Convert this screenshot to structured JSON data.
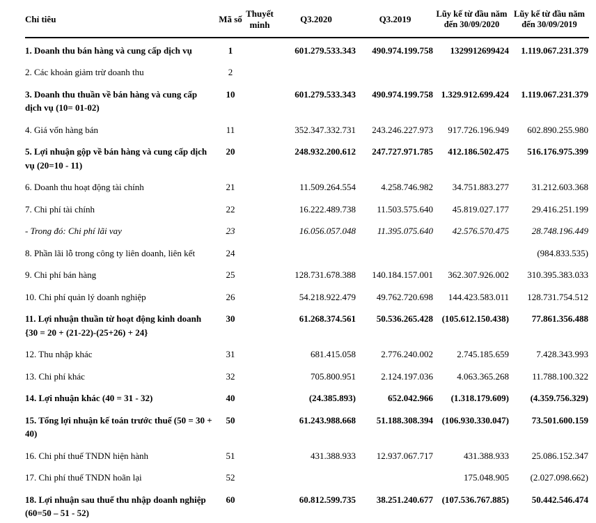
{
  "table": {
    "headers": {
      "label": "Chỉ tiêu",
      "code": "Mã số",
      "note": "Thuyết minh",
      "q3_2020": "Q3.2020",
      "q3_2019": "Q3.2019",
      "ytd_2020": "Lũy kế từ đầu năm đến 30/09/2020",
      "ytd_2019": "Lũy kế từ đầu năm đến 30/09/2019"
    },
    "rows": [
      {
        "label": "1. Doanh thu bán hàng và cung cấp dịch vụ",
        "code": "1",
        "note": "",
        "q3_2020": "601.279.533.343",
        "q3_2019": "490.974.199.758",
        "ytd_2020": "1329912699424",
        "ytd_2019": "1.119.067.231.379",
        "style": "bold"
      },
      {
        "label": "2. Các khoản giảm trừ doanh thu",
        "code": "2",
        "note": "",
        "q3_2020": "",
        "q3_2019": "",
        "ytd_2020": "",
        "ytd_2019": "",
        "style": "normal"
      },
      {
        "label": "3. Doanh thu thuần về bán hàng và cung cấp dịch vụ (10= 01-02)",
        "code": "10",
        "note": "",
        "q3_2020": "601.279.533.343",
        "q3_2019": "490.974.199.758",
        "ytd_2020": "1.329.912.699.424",
        "ytd_2019": "1.119.067.231.379",
        "style": "bold"
      },
      {
        "label": "4. Giá vốn hàng bán",
        "code": "11",
        "note": "",
        "q3_2020": "352.347.332.731",
        "q3_2019": "243.246.227.973",
        "ytd_2020": "917.726.196.949",
        "ytd_2019": "602.890.255.980",
        "style": "normal"
      },
      {
        "label": "5. Lợi nhuận gộp về bán hàng và cung cấp dịch vụ (20=10 - 11)",
        "code": "20",
        "note": "",
        "q3_2020": "248.932.200.612",
        "q3_2019": "247.727.971.785",
        "ytd_2020": "412.186.502.475",
        "ytd_2019": "516.176.975.399",
        "style": "bold"
      },
      {
        "label": "6. Doanh thu hoạt động tài chính",
        "code": "21",
        "note": "",
        "q3_2020": "11.509.264.554",
        "q3_2019": "4.258.746.982",
        "ytd_2020": "34.751.883.277",
        "ytd_2019": "31.212.603.368",
        "style": "normal"
      },
      {
        "label": "7. Chi phí tài chính",
        "code": "22",
        "note": "",
        "q3_2020": "16.222.489.738",
        "q3_2019": "11.503.575.640",
        "ytd_2020": "45.819.027.177",
        "ytd_2019": "29.416.251.199",
        "style": "normal"
      },
      {
        "label": "- Trong đó: Chi phí lãi vay",
        "code": "23",
        "note": "",
        "q3_2020": "16.056.057.048",
        "q3_2019": "11.395.075.640",
        "ytd_2020": "42.576.570.475",
        "ytd_2019": "28.748.196.449",
        "style": "italic"
      },
      {
        "label": "8. Phần lãi lỗ trong công ty liên doanh, liên kết",
        "code": "24",
        "note": "",
        "q3_2020": "",
        "q3_2019": "",
        "ytd_2020": "",
        "ytd_2019": "(984.833.535)",
        "style": "normal"
      },
      {
        "label": "9. Chi phí bán hàng",
        "code": "25",
        "note": "",
        "q3_2020": "128.731.678.388",
        "q3_2019": "140.184.157.001",
        "ytd_2020": "362.307.926.002",
        "ytd_2019": "310.395.383.033",
        "style": "normal"
      },
      {
        "label": "10. Chi phí quản lý doanh nghiệp",
        "code": "26",
        "note": "",
        "q3_2020": "54.218.922.479",
        "q3_2019": "49.762.720.698",
        "ytd_2020": "144.423.583.011",
        "ytd_2019": "128.731.754.512",
        "style": "normal"
      },
      {
        "label": "11. Lợi nhuận thuần từ hoạt động kinh doanh {30 = 20 + (21-22)-(25+26) + 24}",
        "code": "30",
        "note": "",
        "q3_2020": "61.268.374.561",
        "q3_2019": "50.536.265.428",
        "ytd_2020": "(105.612.150.438)",
        "ytd_2019": "77.861.356.488",
        "style": "bold"
      },
      {
        "label": "12. Thu nhập khác",
        "code": "31",
        "note": "",
        "q3_2020": "681.415.058",
        "q3_2019": "2.776.240.002",
        "ytd_2020": "2.745.185.659",
        "ytd_2019": "7.428.343.993",
        "style": "normal"
      },
      {
        "label": "13. Chi phí khác",
        "code": "32",
        "note": "",
        "q3_2020": "705.800.951",
        "q3_2019": "2.124.197.036",
        "ytd_2020": "4.063.365.268",
        "ytd_2019": "11.788.100.322",
        "style": "normal"
      },
      {
        "label": "14. Lợi nhuận khác (40 = 31 - 32)",
        "code": "40",
        "note": "",
        "q3_2020": "(24.385.893)",
        "q3_2019": "652.042.966",
        "ytd_2020": "(1.318.179.609)",
        "ytd_2019": "(4.359.756.329)",
        "style": "bold"
      },
      {
        "label": "15. Tổng lợi nhuận kế toán trước thuế (50 = 30 + 40)",
        "code": "50",
        "note": "",
        "q3_2020": "61.243.988.668",
        "q3_2019": "51.188.308.394",
        "ytd_2020": "(106.930.330.047)",
        "ytd_2019": "73.501.600.159",
        "style": "bold"
      },
      {
        "label": "16. Chi phí thuế TNDN hiện hành",
        "code": "51",
        "note": "",
        "q3_2020": "431.388.933",
        "q3_2019": "12.937.067.717",
        "ytd_2020": "431.388.933",
        "ytd_2019": "25.086.152.347",
        "style": "normal"
      },
      {
        "label": "17. Chi phí thuế TNDN hoãn lại",
        "code": "52",
        "note": "",
        "q3_2020": "",
        "q3_2019": "",
        "ytd_2020": "175.048.905",
        "ytd_2019": "(2.027.098.662)",
        "style": "normal"
      },
      {
        "label": "18. Lợi nhuận sau thuế thu nhập doanh nghiệp (60=50 – 51 - 52)",
        "code": "60",
        "note": "",
        "q3_2020": "60.812.599.735",
        "q3_2019": "38.251.240.677",
        "ytd_2020": "(107.536.767.885)",
        "ytd_2019": "50.442.546.474",
        "style": "bold"
      }
    ]
  }
}
